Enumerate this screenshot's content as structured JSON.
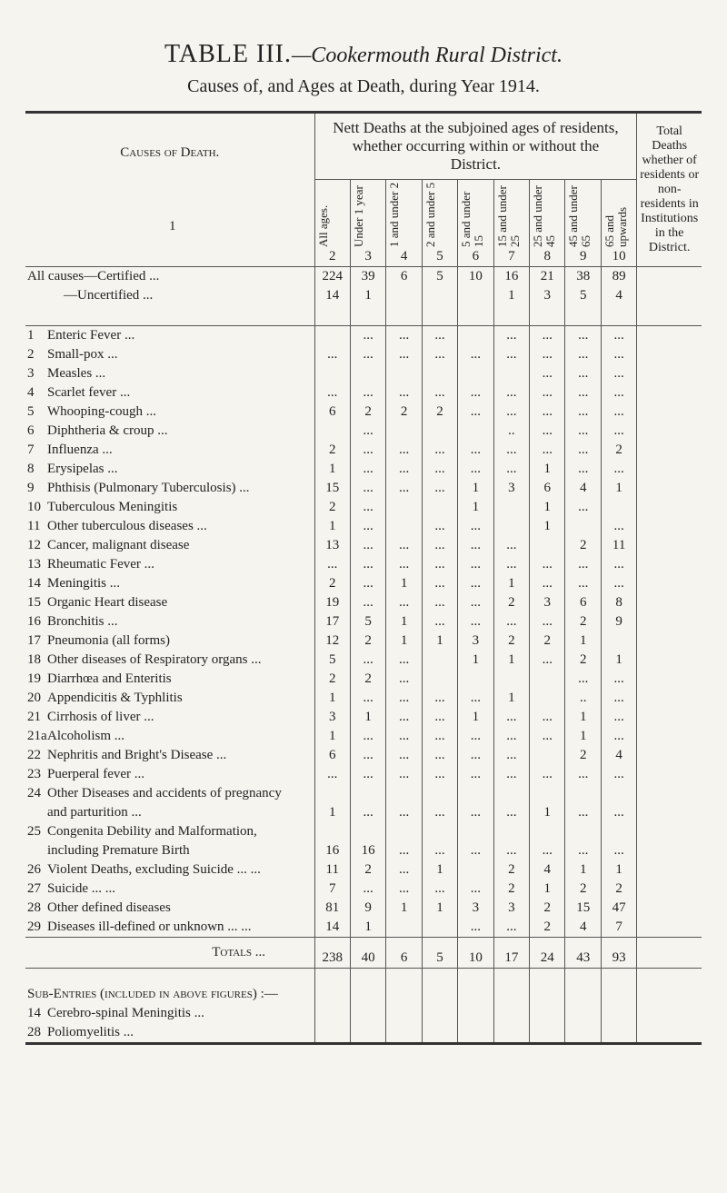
{
  "header": {
    "title": "TABLE III.",
    "title_place": "—Cookermouth Rural District.",
    "subtitle": "Causes of, and Ages at Death, during Year 1914."
  },
  "table": {
    "cause_heading": "Causes of Death.",
    "cause_number": "1",
    "group_heading": "Nett Deaths at the subjoined ages of residents, whether occurring within or without the District.",
    "age_columns": [
      "All ages.",
      "Under 1 year",
      "1 and under 2",
      "2 and under 5",
      "5 and under 15",
      "15 and under 25",
      "25 and under 45",
      "45 and under 65",
      "65 and upwards"
    ],
    "age_numbers": [
      "2",
      "3",
      "4",
      "5",
      "6",
      "7",
      "8",
      "9",
      "10"
    ],
    "total_heading": "Total Deaths whether of residents or non-residents in Institutions in the District.",
    "summary_rows": [
      {
        "label": "All causes—Certified ...",
        "cells": [
          "224",
          "39",
          "6",
          "5",
          "10",
          "16",
          "21",
          "38",
          "89"
        ]
      },
      {
        "label": "—Uncertified ...",
        "cells": [
          "14",
          "1",
          "",
          "",
          "",
          "1",
          "3",
          "5",
          "4"
        ]
      }
    ],
    "rows": [
      {
        "num": "1",
        "label": "Enteric Fever ...",
        "cells": [
          "",
          "...",
          "...",
          "...",
          "",
          "...",
          "...",
          "...",
          "..."
        ]
      },
      {
        "num": "2",
        "label": "Small-pox ...",
        "cells": [
          "...",
          "...",
          "...",
          "...",
          "...",
          "...",
          "...",
          "...",
          "..."
        ]
      },
      {
        "num": "3",
        "label": "Measles ...",
        "cells": [
          "",
          "",
          "",
          "",
          "",
          "",
          "...",
          "...",
          "..."
        ]
      },
      {
        "num": "4",
        "label": "Scarlet fever ...",
        "cells": [
          "...",
          "...",
          "...",
          "...",
          "...",
          "...",
          "...",
          "...",
          "..."
        ]
      },
      {
        "num": "5",
        "label": "Whooping-cough ...",
        "cells": [
          "6",
          "2",
          "2",
          "2",
          "...",
          "...",
          "...",
          "...",
          "..."
        ]
      },
      {
        "num": "6",
        "label": "Diphtheria & croup ...",
        "cells": [
          "",
          "...",
          "",
          "",
          "",
          "..",
          "...",
          "...",
          "..."
        ]
      },
      {
        "num": "7",
        "label": "Influenza ...",
        "cells": [
          "2",
          "...",
          "...",
          "...",
          "...",
          "...",
          "...",
          "...",
          "2"
        ]
      },
      {
        "num": "8",
        "label": "Erysipelas ...",
        "cells": [
          "1",
          "...",
          "...",
          "...",
          "...",
          "...",
          "1",
          "...",
          "..."
        ]
      },
      {
        "num": "9",
        "label": "Phthisis (Pulmonary Tuberculosis) ...",
        "cells": [
          "15",
          "...",
          "...",
          "...",
          "1",
          "3",
          "6",
          "4",
          "1"
        ]
      },
      {
        "num": "10",
        "label": "Tuberculous Meningitis",
        "cells": [
          "2",
          "...",
          "",
          "",
          "1",
          "",
          "1",
          "...",
          ""
        ]
      },
      {
        "num": "11",
        "label": "Other tuberculous diseases ...",
        "cells": [
          "1",
          "...",
          "",
          "...",
          "...",
          "",
          "1",
          "",
          "..."
        ]
      },
      {
        "num": "12",
        "label": "Cancer, malignant disease",
        "cells": [
          "13",
          "...",
          "...",
          "...",
          "...",
          "...",
          "",
          "2",
          "11"
        ]
      },
      {
        "num": "13",
        "label": "Rheumatic Fever ...",
        "cells": [
          "...",
          "...",
          "...",
          "...",
          "...",
          "...",
          "...",
          "...",
          "..."
        ]
      },
      {
        "num": "14",
        "label": "Meningitis ...",
        "cells": [
          "2",
          "...",
          "1",
          "...",
          "...",
          "1",
          "...",
          "...",
          "..."
        ]
      },
      {
        "num": "15",
        "label": "Organic Heart disease",
        "cells": [
          "19",
          "...",
          "...",
          "...",
          "...",
          "2",
          "3",
          "6",
          "8"
        ]
      },
      {
        "num": "16",
        "label": "Bronchitis ...",
        "cells": [
          "17",
          "5",
          "1",
          "...",
          "...",
          "...",
          "...",
          "2",
          "9"
        ]
      },
      {
        "num": "17",
        "label": "Pneumonia (all forms)",
        "cells": [
          "12",
          "2",
          "1",
          "1",
          "3",
          "2",
          "2",
          "1",
          ""
        ]
      },
      {
        "num": "18",
        "label": "Other diseases of Respiratory organs ...",
        "cells": [
          "5",
          "...",
          "...",
          "",
          "1",
          "1",
          "...",
          "2",
          "1"
        ]
      },
      {
        "num": "19",
        "label": "Diarrhœa and Enteritis",
        "cells": [
          "2",
          "2",
          "...",
          "",
          "",
          "",
          "",
          "...",
          "..."
        ]
      },
      {
        "num": "20",
        "label": "Appendicitis & Typhlitis",
        "cells": [
          "1",
          "...",
          "...",
          "...",
          "...",
          "1",
          "",
          "..",
          "..."
        ]
      },
      {
        "num": "21",
        "label": "Cirrhosis of liver ...",
        "cells": [
          "3",
          "1",
          "...",
          "...",
          "1",
          "...",
          "...",
          "1",
          "..."
        ]
      },
      {
        "num": "21a",
        "label": "Alcoholism ...",
        "cells": [
          "1",
          "...",
          "...",
          "...",
          "...",
          "...",
          "...",
          "1",
          "..."
        ]
      },
      {
        "num": "22",
        "label": "Nephritis and Bright's Disease ...",
        "cells": [
          "6",
          "...",
          "...",
          "...",
          "...",
          "...",
          "",
          "2",
          "4"
        ]
      },
      {
        "num": "23",
        "label": "Puerperal fever ...",
        "cells": [
          "...",
          "...",
          "...",
          "...",
          "...",
          "...",
          "...",
          "...",
          "..."
        ]
      },
      {
        "num": "24",
        "label": "Other Diseases and accidents of pregnancy and parturition ...",
        "cells": [
          "1",
          "...",
          "...",
          "...",
          "...",
          "...",
          "1",
          "...",
          "..."
        ]
      },
      {
        "num": "25",
        "label": "Congenita Debility and Malformation, including Premature Birth",
        "cells": [
          "16",
          "16",
          "...",
          "...",
          "...",
          "...",
          "...",
          "...",
          "..."
        ]
      },
      {
        "num": "26",
        "label": "Violent Deaths, excluding Suicide ... ...",
        "cells": [
          "11",
          "2",
          "...",
          "1",
          "",
          "2",
          "4",
          "1",
          "1"
        ]
      },
      {
        "num": "27",
        "label": "Suicide ... ...",
        "cells": [
          "7",
          "...",
          "...",
          "...",
          "...",
          "2",
          "1",
          "2",
          "2"
        ]
      },
      {
        "num": "28",
        "label": "Other defined diseases",
        "cells": [
          "81",
          "9",
          "1",
          "1",
          "3",
          "3",
          "2",
          "15",
          "47"
        ]
      },
      {
        "num": "29",
        "label": "Diseases ill-defined or unknown ... ...",
        "cells": [
          "14",
          "1",
          "",
          "",
          "...",
          "...",
          "2",
          "4",
          "7"
        ]
      }
    ],
    "totals": {
      "label": "Totals ...",
      "cells": [
        "238",
        "40",
        "6",
        "5",
        "10",
        "17",
        "24",
        "43",
        "93"
      ]
    },
    "sub_entries": {
      "heading": "Sub-Entries (included in above figures) :—",
      "rows": [
        {
          "num": "14",
          "label": "Cerebro-spinal Meningitis ..."
        },
        {
          "num": "28",
          "label": "Poliomyelitis ..."
        }
      ]
    }
  }
}
